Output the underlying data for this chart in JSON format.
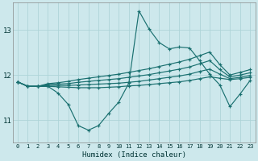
{
  "xlabel": "Humidex (Indice chaleur)",
  "ylabel": "",
  "background_color": "#cde8ec",
  "line_color": "#1a7070",
  "grid_color": "#aed4d8",
  "xlim": [
    -0.5,
    23.5
  ],
  "ylim": [
    10.5,
    13.6
  ],
  "yticks": [
    11,
    12,
    13
  ],
  "xticks": [
    0,
    1,
    2,
    3,
    4,
    5,
    6,
    7,
    8,
    9,
    10,
    11,
    12,
    13,
    14,
    15,
    16,
    17,
    18,
    19,
    20,
    21,
    22,
    23
  ],
  "lines": [
    [
      11.85,
      11.75,
      11.75,
      11.75,
      11.6,
      11.35,
      10.88,
      10.78,
      10.88,
      11.15,
      11.4,
      11.82,
      13.42,
      13.02,
      12.72,
      12.58,
      12.62,
      12.6,
      12.32,
      12.02,
      11.78,
      11.3,
      11.58,
      11.88
    ],
    [
      11.85,
      11.75,
      11.75,
      11.75,
      11.74,
      11.73,
      11.72,
      11.72,
      11.72,
      11.73,
      11.74,
      11.76,
      11.77,
      11.79,
      11.81,
      11.83,
      11.85,
      11.88,
      11.92,
      11.96,
      11.93,
      11.9,
      11.92,
      11.95
    ],
    [
      11.85,
      11.75,
      11.75,
      11.77,
      11.77,
      11.77,
      11.78,
      11.79,
      11.8,
      11.81,
      11.82,
      11.84,
      11.86,
      11.89,
      11.92,
      11.95,
      11.98,
      12.02,
      12.08,
      12.13,
      12.02,
      11.92,
      11.95,
      11.99
    ],
    [
      11.85,
      11.75,
      11.75,
      11.79,
      11.8,
      11.81,
      11.84,
      11.86,
      11.88,
      11.9,
      11.92,
      11.95,
      11.98,
      12.01,
      12.05,
      12.09,
      12.13,
      12.18,
      12.25,
      12.32,
      12.12,
      11.96,
      12.0,
      12.05
    ],
    [
      11.85,
      11.75,
      11.75,
      11.81,
      11.83,
      11.86,
      11.9,
      11.93,
      11.96,
      11.99,
      12.02,
      12.06,
      12.1,
      12.14,
      12.19,
      12.24,
      12.29,
      12.35,
      12.43,
      12.51,
      12.23,
      12.0,
      12.06,
      12.12
    ]
  ]
}
